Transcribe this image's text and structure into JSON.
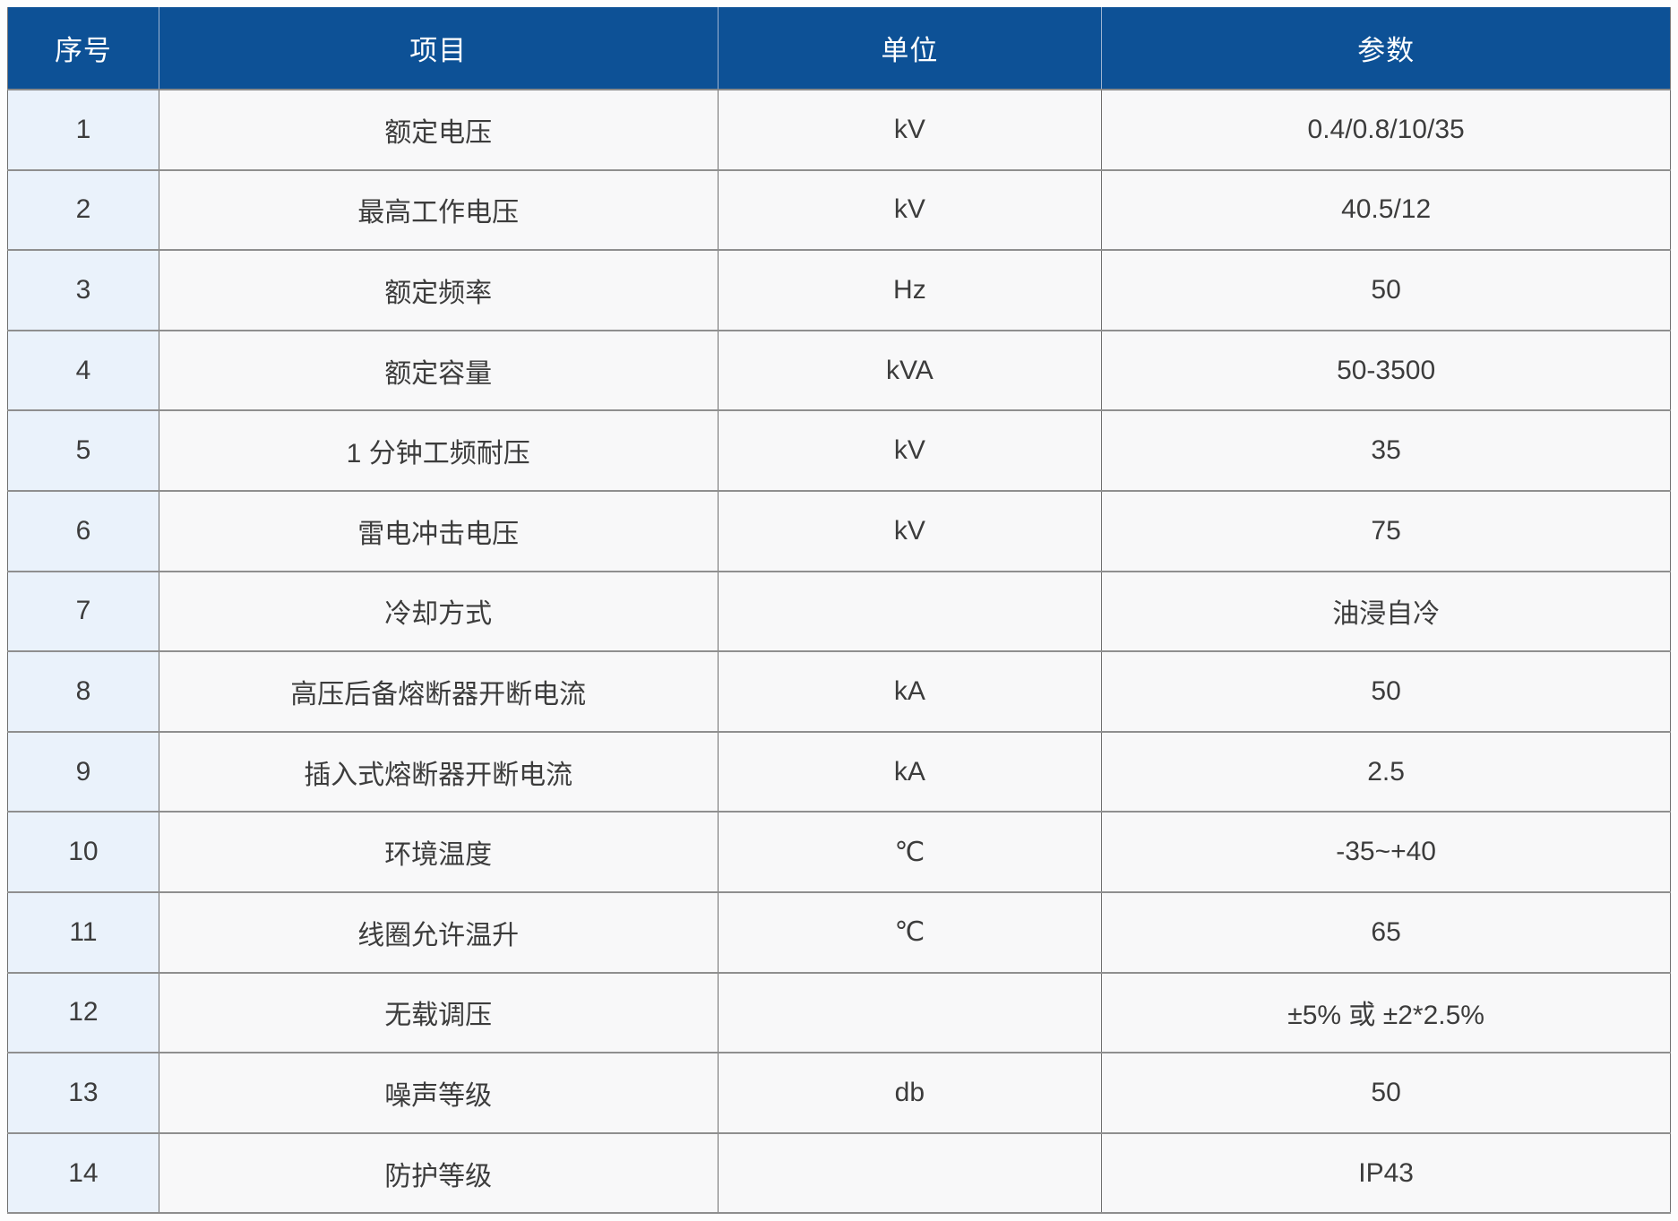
{
  "table": {
    "headers": {
      "no": "序号",
      "item": "项目",
      "unit": "单位",
      "param": "参数"
    },
    "rows": [
      {
        "no": "1",
        "item": "额定电压",
        "unit": "kV",
        "param": "0.4/0.8/10/35"
      },
      {
        "no": "2",
        "item": "最高工作电压",
        "unit": "kV",
        "param": "40.5/12"
      },
      {
        "no": "3",
        "item": "额定频率",
        "unit": "Hz",
        "param": "50"
      },
      {
        "no": "4",
        "item": "额定容量",
        "unit": "kVA",
        "param": "50-3500"
      },
      {
        "no": "5",
        "item": "1 分钟工频耐压",
        "unit": "kV",
        "param": "35"
      },
      {
        "no": "6",
        "item": "雷电冲击电压",
        "unit": "kV",
        "param": "75"
      },
      {
        "no": "7",
        "item": "冷却方式",
        "unit": "",
        "param": "油浸自冷"
      },
      {
        "no": "8",
        "item": "高压后备熔断器开断电流",
        "unit": "kA",
        "param": "50"
      },
      {
        "no": "9",
        "item": "插入式熔断器开断电流",
        "unit": "kA",
        "param": "2.5"
      },
      {
        "no": "10",
        "item": "环境温度",
        "unit": "℃",
        "param": "-35~+40"
      },
      {
        "no": "11",
        "item": "线圈允许温升",
        "unit": "℃",
        "param": "65"
      },
      {
        "no": "12",
        "item": "无载调压",
        "unit": "",
        "param": "±5% 或 ±2*2.5%"
      },
      {
        "no": "13",
        "item": "噪声等级",
        "unit": "db",
        "param": "50"
      },
      {
        "no": "14",
        "item": "防护等级",
        "unit": "",
        "param": "IP43"
      }
    ],
    "colors": {
      "header_bg": "#0d5196",
      "header_divider": "#9db4d2",
      "seq_column_bg": "#eaf2fb",
      "cell_bg": "#f8f8f9",
      "grid_line": "#8a8a8a",
      "body_text": "#3c3c3c"
    }
  }
}
